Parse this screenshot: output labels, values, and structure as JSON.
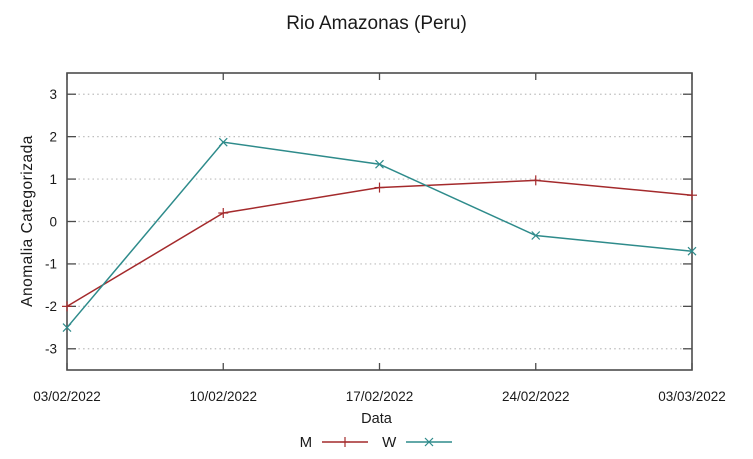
{
  "chart_data": {
    "type": "line",
    "title": "Rio Amazonas (Peru)",
    "xlabel": "Data",
    "ylabel": "Anomalia Categorizada",
    "categories": [
      "03/02/2022",
      "10/02/2022",
      "17/02/2022",
      "24/02/2022",
      "03/03/2022"
    ],
    "yticks": [
      -3,
      -2,
      -1,
      0,
      1,
      2,
      3
    ],
    "ylim": [
      -3.5,
      3.5
    ],
    "grid": "horizontal-dotted",
    "legend_position": "bottom-center",
    "series": [
      {
        "name": "M",
        "marker": "plus",
        "color": "#a42a2c",
        "values": [
          -2.0,
          0.2,
          0.8,
          0.97,
          0.62
        ]
      },
      {
        "name": "W",
        "marker": "cross",
        "color": "#2e8b8b",
        "values": [
          -2.5,
          1.87,
          1.35,
          -0.33,
          -0.7
        ]
      }
    ],
    "colors": {
      "border": "#4c4c4c",
      "grid": "#bdbdbd",
      "text": "#1a1a1a",
      "background": "#ffffff"
    }
  }
}
